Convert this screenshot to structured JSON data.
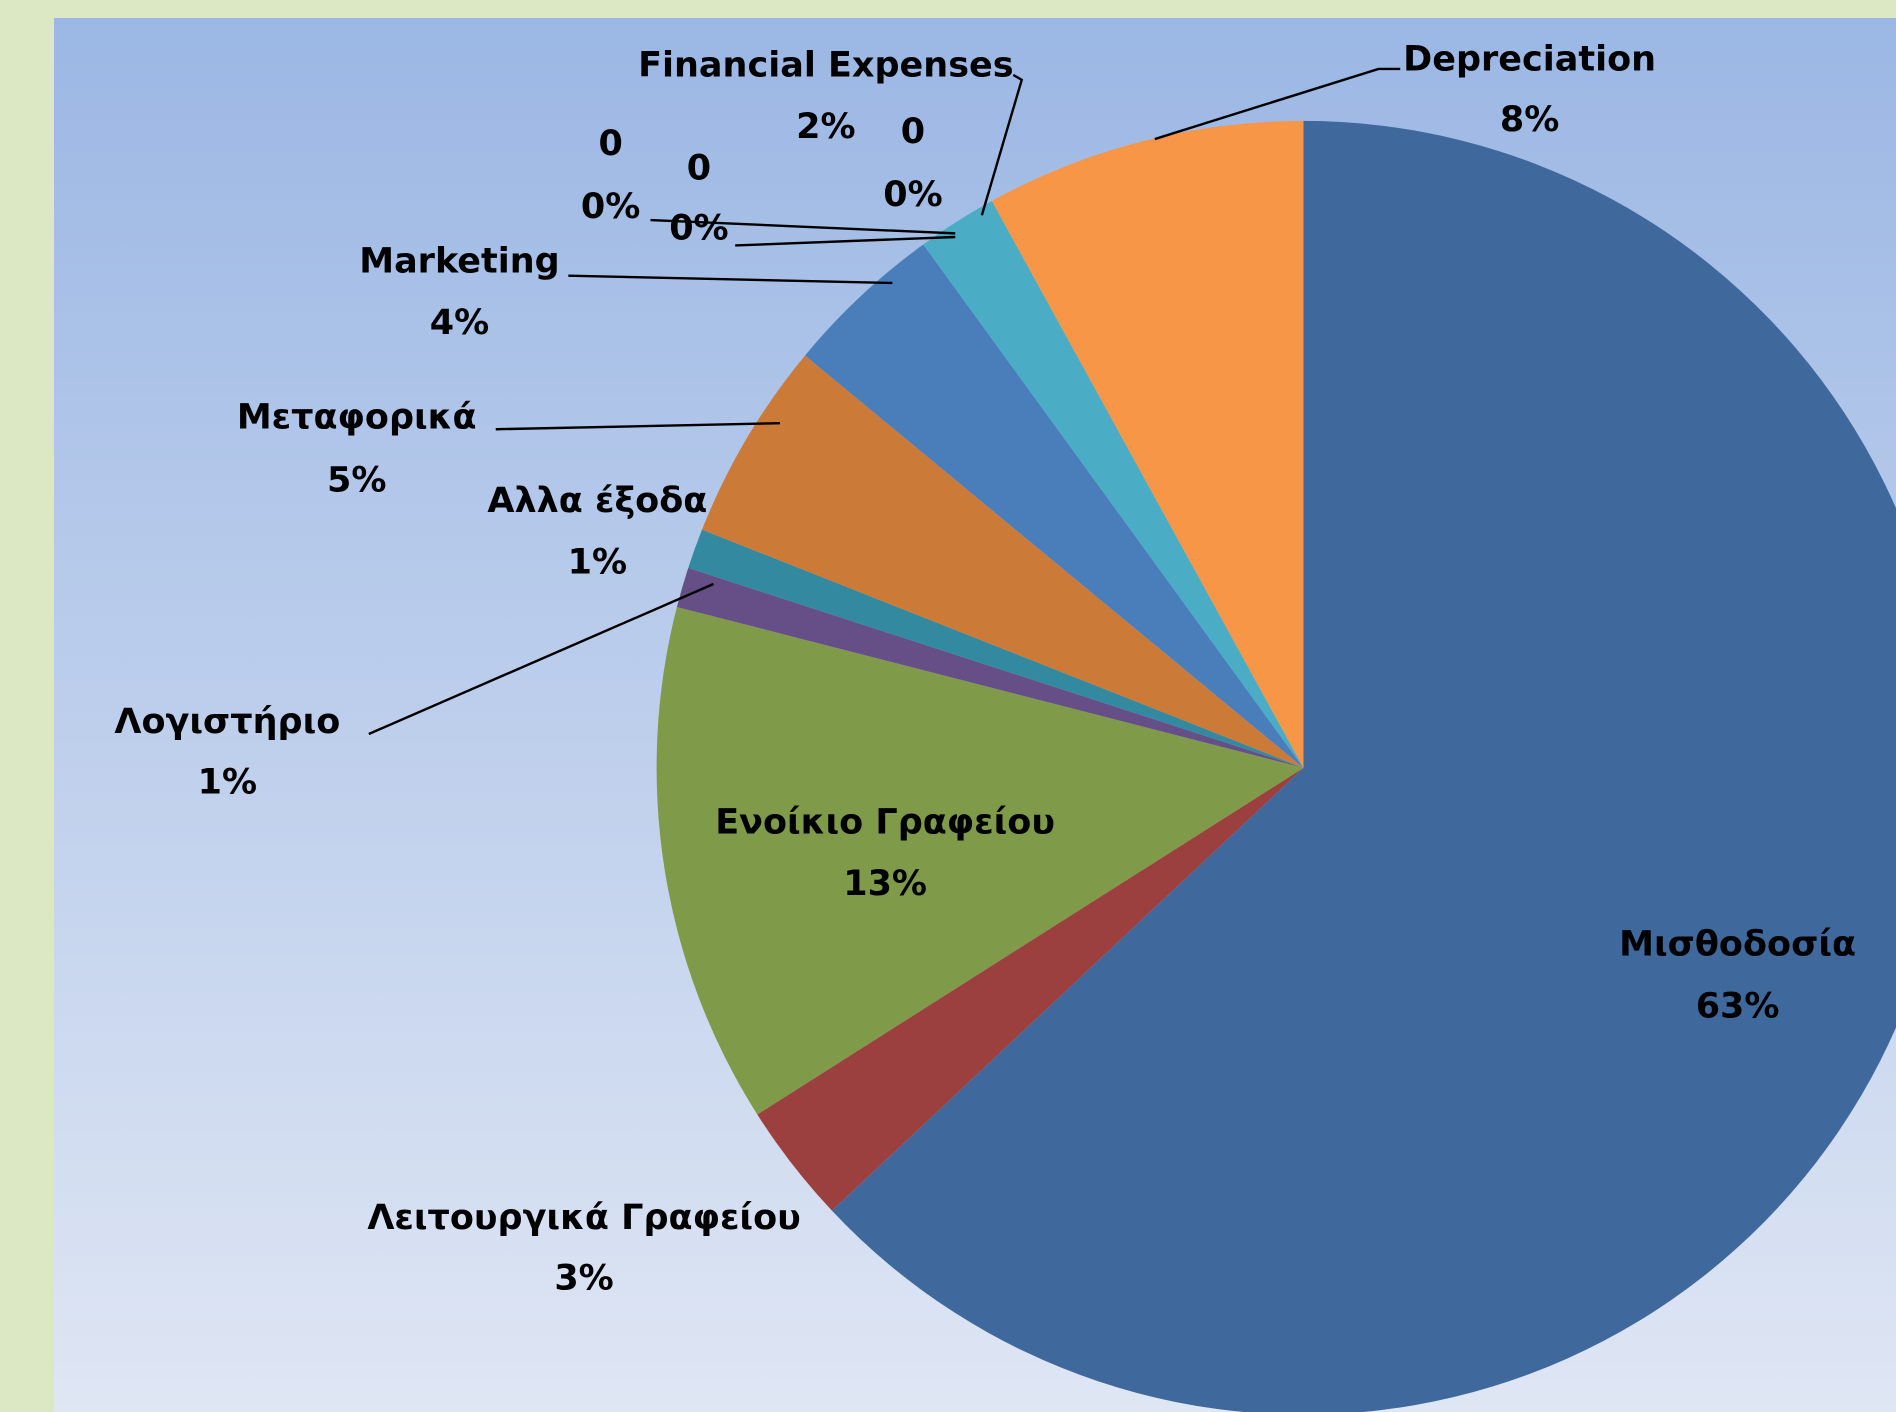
{
  "chart_data": {
    "type": "pie",
    "categories": [
      "Μισθοδοσία",
      "Λειτουργικά Γραφείου",
      "Ενοίκιο Γραφείου",
      "Λογιστήριο",
      "Αλλα έξοδα",
      "Μεταφορικά",
      "Marketing",
      "0",
      "0",
      "Financial Expenses",
      "0",
      "Depreciation"
    ],
    "values": [
      63,
      3,
      13,
      1,
      1,
      5,
      4,
      0,
      0,
      2,
      0,
      8
    ],
    "value_labels": [
      "63%",
      "3%",
      "13%",
      "1%",
      "1%",
      "5%",
      "4%",
      "0%",
      "0%",
      "2%",
      "0%",
      "8%"
    ],
    "colors": [
      "#3f689c",
      "#9b403e",
      "#7f9a48",
      "#664f86",
      "#338aa0",
      "#cc7a38",
      "#4a7ebb",
      "#9bbb59",
      "#8064a2",
      "#4bacc6",
      "#c0504d",
      "#f79646"
    ]
  }
}
